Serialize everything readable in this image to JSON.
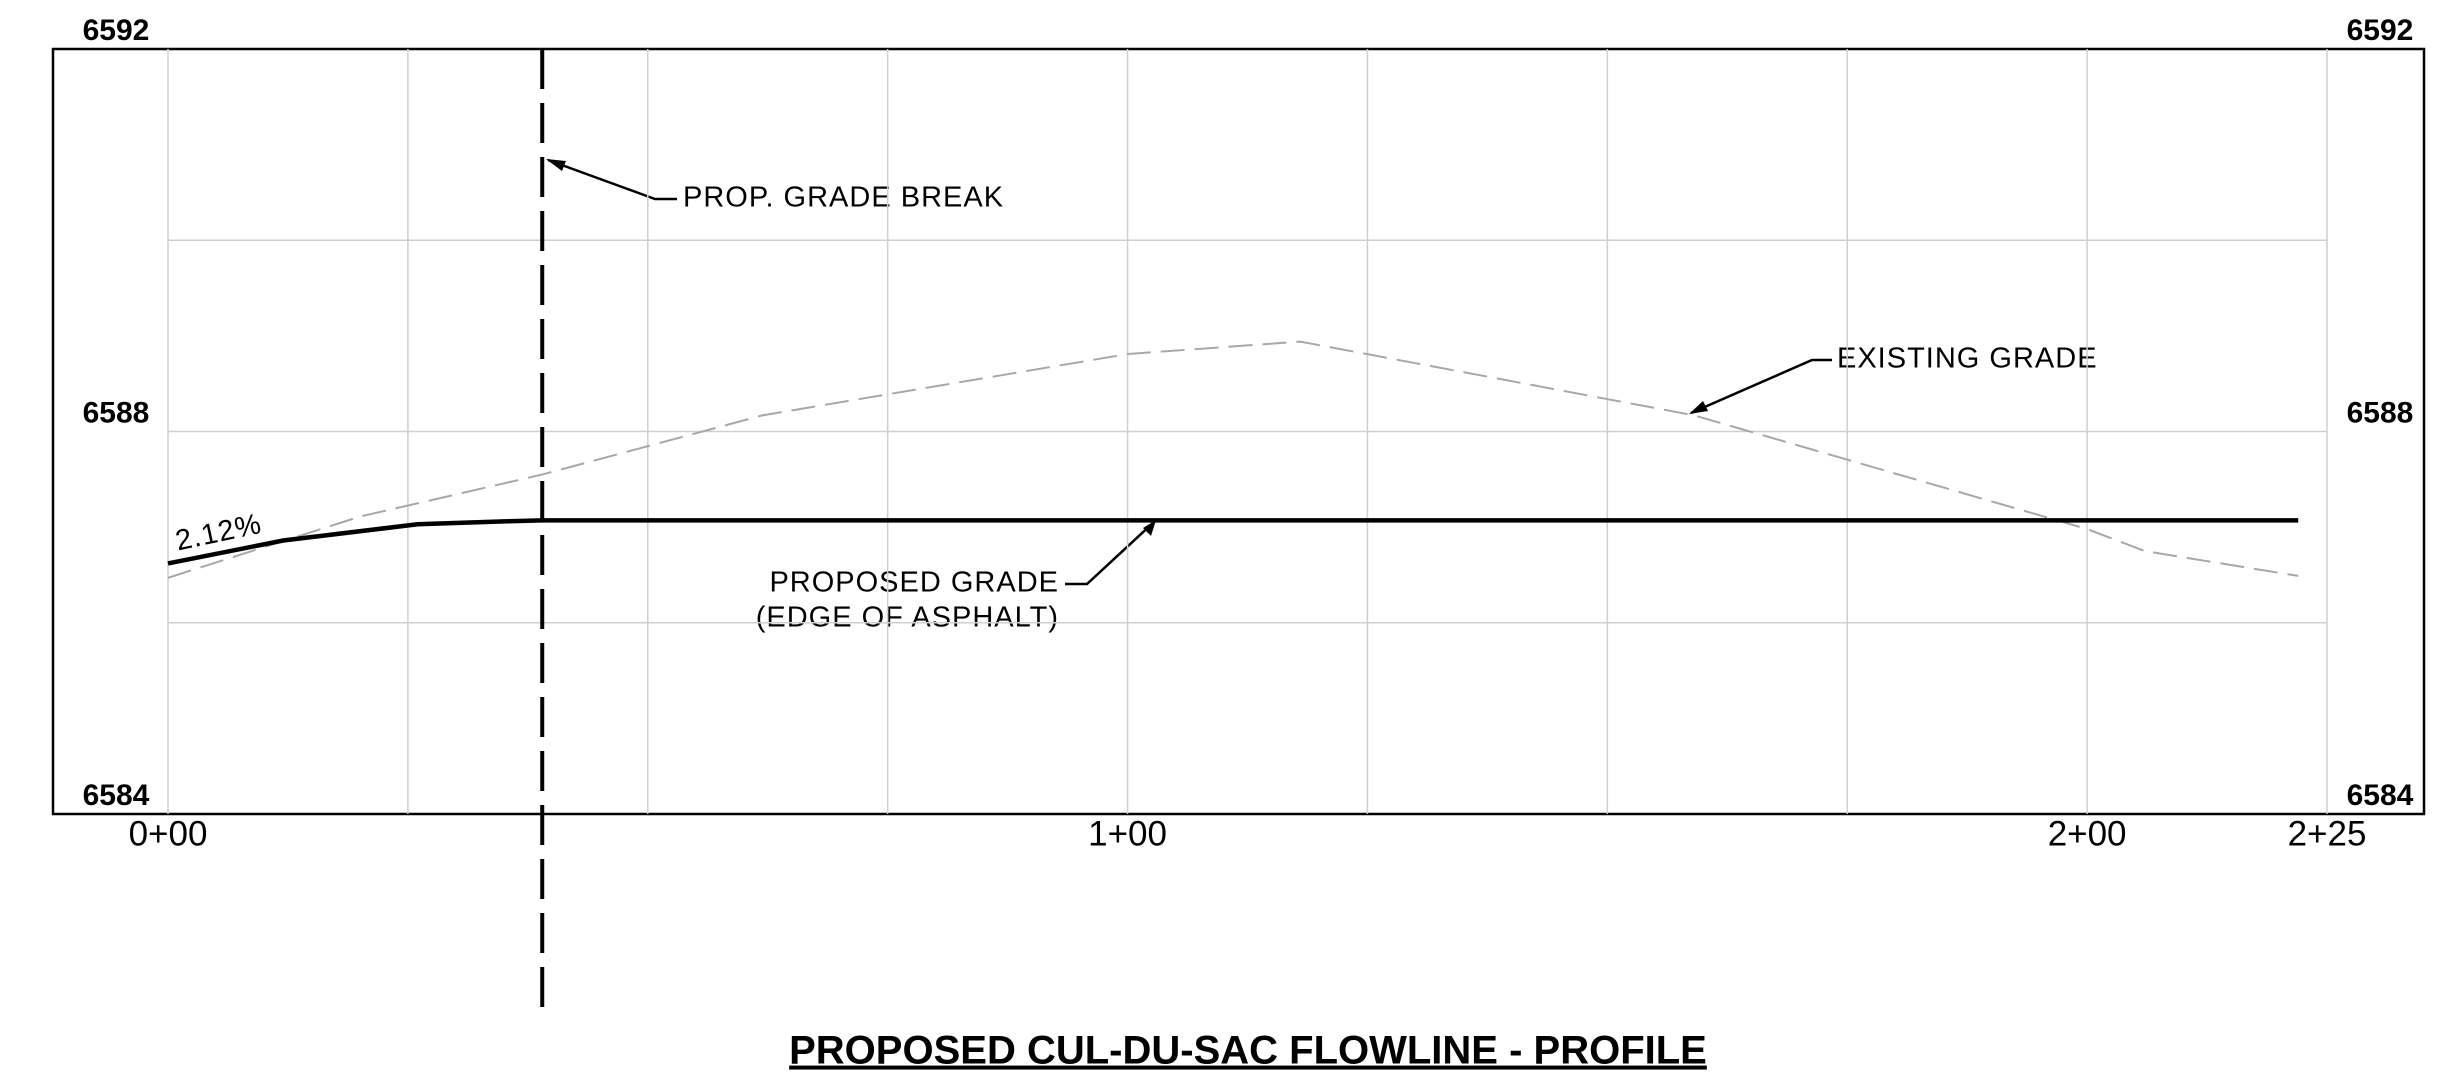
{
  "chart_data": {
    "type": "line",
    "title": "PROPOSED CUL-DU-SAC FLOWLINE - PROFILE",
    "xlim": [
      0,
      225
    ],
    "xticks": [
      {
        "value": 0,
        "label": "0+00"
      },
      {
        "value": 100,
        "label": "1+00"
      },
      {
        "value": 200,
        "label": "2+00"
      },
      {
        "value": 225,
        "label": "2+25"
      }
    ],
    "xgrid": [
      0,
      25,
      50,
      75,
      100,
      125,
      150,
      175,
      200,
      225
    ],
    "ylim": [
      6584,
      6592
    ],
    "yticks": [
      6584,
      6588,
      6592
    ],
    "ygrid": [
      6586,
      6588,
      6590
    ],
    "grid": true,
    "series": [
      {
        "name": "EXISTING GRADE",
        "color": "#a8a8a8",
        "dashed": true,
        "x": [
          0,
          20,
          39,
          62,
          100,
          118,
          159,
          200,
          206,
          222
        ],
        "values": [
          6586.47,
          6587.11,
          6587.55,
          6588.17,
          6588.81,
          6588.94,
          6588.17,
          6586.98,
          6586.75,
          6586.49
        ]
      },
      {
        "name": "PROPOSED GRADE",
        "color": "#000000",
        "dashed": false,
        "x": [
          0,
          12,
          26,
          35,
          39,
          222
        ],
        "values": [
          6586.62,
          6586.86,
          6587.03,
          6587.06,
          6587.07,
          6587.07
        ]
      }
    ],
    "grade_break_x": 39,
    "annotations": {
      "grade_break": "PROP. GRADE BREAK",
      "existing": "EXISTING GRADE",
      "proposed": "PROPOSED GRADE",
      "proposed_note": "(EDGE OF ASPHALT)",
      "slope": "2.12%"
    }
  }
}
